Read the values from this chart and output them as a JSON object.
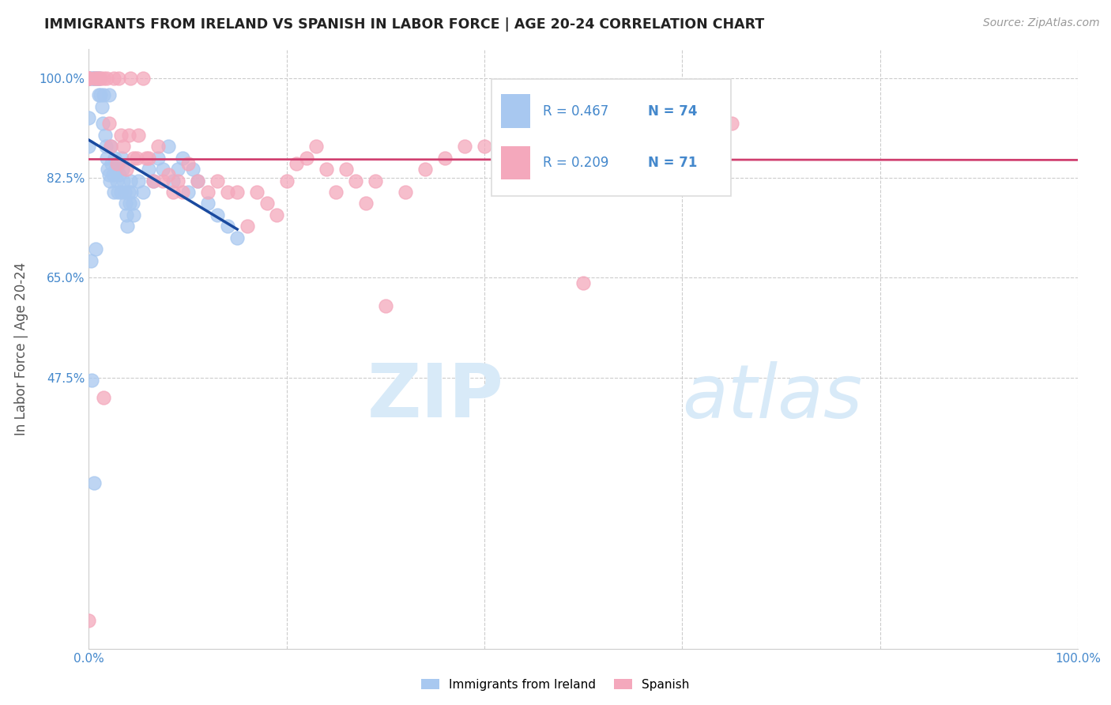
{
  "title": "IMMIGRANTS FROM IRELAND VS SPANISH IN LABOR FORCE | AGE 20-24 CORRELATION CHART",
  "source": "Source: ZipAtlas.com",
  "ylabel": "In Labor Force | Age 20-24",
  "xlim": [
    0.0,
    1.0
  ],
  "ylim": [
    0.0,
    1.05
  ],
  "yticks": [
    0.475,
    0.65,
    0.825,
    1.0
  ],
  "ytick_labels": [
    "47.5%",
    "65.0%",
    "82.5%",
    "100.0%"
  ],
  "color_ireland": "#a8c8f0",
  "color_spanish": "#f4a8bc",
  "color_line_ireland": "#1a4a9f",
  "color_line_spanish": "#d04070",
  "color_axis_text": "#4488cc",
  "color_legend_text": "#4488cc",
  "watermark_zip": "ZIP",
  "watermark_atlas": "atlas",
  "ireland_x": [
    0.0,
    0.0,
    0.0,
    0.0,
    0.0,
    0.0,
    0.0,
    0.0,
    0.003,
    0.004,
    0.005,
    0.006,
    0.007,
    0.008,
    0.009,
    0.01,
    0.01,
    0.011,
    0.012,
    0.013,
    0.014,
    0.015,
    0.016,
    0.017,
    0.018,
    0.019,
    0.02,
    0.02,
    0.021,
    0.022,
    0.023,
    0.024,
    0.025,
    0.026,
    0.027,
    0.028,
    0.029,
    0.03,
    0.031,
    0.032,
    0.033,
    0.034,
    0.035,
    0.036,
    0.037,
    0.038,
    0.039,
    0.04,
    0.041,
    0.042,
    0.043,
    0.044,
    0.045,
    0.05,
    0.055,
    0.06,
    0.065,
    0.07,
    0.075,
    0.08,
    0.085,
    0.09,
    0.095,
    0.1,
    0.105,
    0.11,
    0.12,
    0.13,
    0.14,
    0.15,
    0.003,
    0.005,
    0.007,
    0.002
  ],
  "ireland_y": [
    1.0,
    1.0,
    1.0,
    1.0,
    1.0,
    1.0,
    0.93,
    0.88,
    1.0,
    1.0,
    1.0,
    1.0,
    1.0,
    1.0,
    1.0,
    1.0,
    0.97,
    1.0,
    0.97,
    0.95,
    0.92,
    0.97,
    0.9,
    0.88,
    0.86,
    0.84,
    0.97,
    0.83,
    0.82,
    0.88,
    0.85,
    0.83,
    0.8,
    0.86,
    0.84,
    0.82,
    0.8,
    0.85,
    0.83,
    0.8,
    0.86,
    0.84,
    0.82,
    0.8,
    0.78,
    0.76,
    0.74,
    0.8,
    0.78,
    0.82,
    0.8,
    0.78,
    0.76,
    0.82,
    0.8,
    0.84,
    0.82,
    0.86,
    0.84,
    0.88,
    0.82,
    0.84,
    0.86,
    0.8,
    0.84,
    0.82,
    0.78,
    0.76,
    0.74,
    0.72,
    0.47,
    0.29,
    0.7,
    0.68
  ],
  "spanish_x": [
    0.0,
    0.0,
    0.0,
    0.0,
    0.0,
    0.005,
    0.008,
    0.01,
    0.012,
    0.015,
    0.018,
    0.02,
    0.022,
    0.025,
    0.028,
    0.03,
    0.032,
    0.035,
    0.038,
    0.04,
    0.042,
    0.045,
    0.048,
    0.05,
    0.055,
    0.058,
    0.06,
    0.065,
    0.07,
    0.075,
    0.08,
    0.085,
    0.09,
    0.095,
    0.1,
    0.11,
    0.12,
    0.13,
    0.14,
    0.15,
    0.16,
    0.17,
    0.18,
    0.19,
    0.2,
    0.21,
    0.22,
    0.23,
    0.24,
    0.25,
    0.26,
    0.27,
    0.28,
    0.29,
    0.3,
    0.32,
    0.34,
    0.36,
    0.38,
    0.4,
    0.42,
    0.45,
    0.48,
    0.5,
    0.52,
    0.55,
    0.6,
    0.62,
    0.64,
    0.65,
    0.015
  ],
  "spanish_y": [
    1.0,
    1.0,
    1.0,
    1.0,
    0.05,
    1.0,
    1.0,
    1.0,
    1.0,
    1.0,
    1.0,
    0.92,
    0.88,
    1.0,
    0.85,
    1.0,
    0.9,
    0.88,
    0.84,
    0.9,
    1.0,
    0.86,
    0.86,
    0.9,
    1.0,
    0.86,
    0.86,
    0.82,
    0.88,
    0.82,
    0.83,
    0.8,
    0.82,
    0.8,
    0.85,
    0.82,
    0.8,
    0.82,
    0.8,
    0.8,
    0.74,
    0.8,
    0.78,
    0.76,
    0.82,
    0.85,
    0.86,
    0.88,
    0.84,
    0.8,
    0.84,
    0.82,
    0.78,
    0.82,
    0.6,
    0.8,
    0.84,
    0.86,
    0.88,
    0.88,
    0.9,
    0.9,
    0.92,
    0.64,
    0.9,
    0.94,
    0.92,
    0.95,
    0.96,
    0.92,
    0.44
  ]
}
